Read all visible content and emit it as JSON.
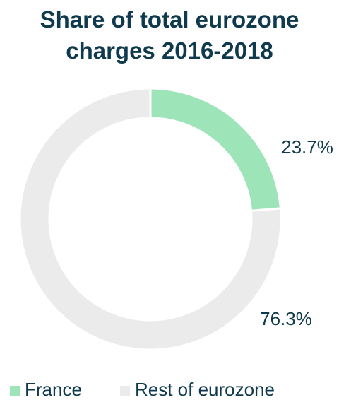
{
  "chart_data": {
    "type": "donut",
    "title": "Share of total eurozone charges 2016-2018",
    "categories": [
      "France",
      "Rest of eurozone"
    ],
    "values": [
      23.7,
      76.3
    ],
    "value_labels": [
      "23.7%",
      "76.3%"
    ],
    "colors": [
      "#9de5b8",
      "#ebebeb"
    ]
  }
}
